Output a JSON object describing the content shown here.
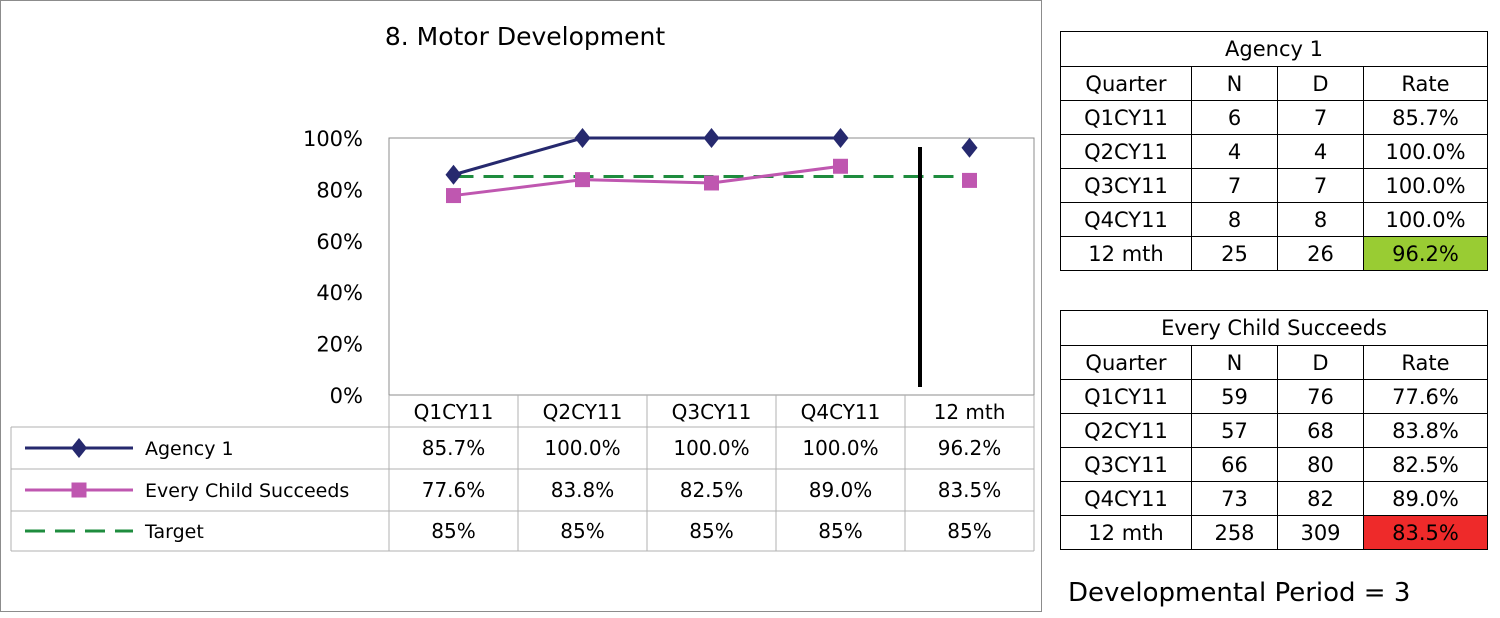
{
  "chart_data": {
    "type": "line",
    "title": "8. Motor Development",
    "categories": [
      "Q1CY11",
      "Q2CY11",
      "Q3CY11",
      "Q4CY11",
      "12 mth"
    ],
    "ylim": [
      0,
      100
    ],
    "yticks": [
      "0%",
      "20%",
      "40%",
      "60%",
      "80%",
      "100%"
    ],
    "series": [
      {
        "name": "Agency 1",
        "values": [
          85.7,
          100.0,
          100.0,
          100.0,
          96.2
        ],
        "labels": [
          "85.7%",
          "100.0%",
          "100.0%",
          "100.0%",
          "96.2%"
        ],
        "color": "#26296e",
        "marker": "diamond",
        "dash": "solid"
      },
      {
        "name": "Every Child Succeeds",
        "values": [
          77.6,
          83.8,
          82.5,
          89.0,
          83.5
        ],
        "labels": [
          "77.6%",
          "83.8%",
          "82.5%",
          "89.0%",
          "83.5%"
        ],
        "color": "#bf57b0",
        "marker": "square",
        "dash": "solid"
      },
      {
        "name": "Target",
        "values": [
          85,
          85,
          85,
          85,
          85
        ],
        "labels": [
          "85%",
          "85%",
          "85%",
          "85%",
          "85%"
        ],
        "color": "#1e8c3e",
        "marker": "none",
        "dash": "dashed"
      }
    ],
    "separator_before_last_category": true,
    "grid": false,
    "legend": "data-table-below"
  },
  "tables": [
    {
      "title": "Agency 1",
      "columns": [
        "Quarter",
        "N",
        "D",
        "Rate"
      ],
      "rows": [
        [
          "Q1CY11",
          "6",
          "7",
          "85.7%"
        ],
        [
          "Q2CY11",
          "4",
          "4",
          "100.0%"
        ],
        [
          "Q3CY11",
          "7",
          "7",
          "100.0%"
        ],
        [
          "Q4CY11",
          "8",
          "8",
          "100.0%"
        ],
        [
          "12 mth",
          "25",
          "26",
          "96.2%"
        ]
      ],
      "highlight_color": "#99cc33"
    },
    {
      "title": "Every Child Succeeds",
      "columns": [
        "Quarter",
        "N",
        "D",
        "Rate"
      ],
      "rows": [
        [
          "Q1CY11",
          "59",
          "76",
          "77.6%"
        ],
        [
          "Q2CY11",
          "57",
          "68",
          "83.8%"
        ],
        [
          "Q3CY11",
          "66",
          "80",
          "82.5%"
        ],
        [
          "Q4CY11",
          "73",
          "82",
          "89.0%"
        ],
        [
          "12 mth",
          "258",
          "309",
          "83.5%"
        ]
      ],
      "highlight_color": "#ee2a2a"
    }
  ],
  "footer": {
    "developmental_period": "Developmental Period = 3"
  }
}
